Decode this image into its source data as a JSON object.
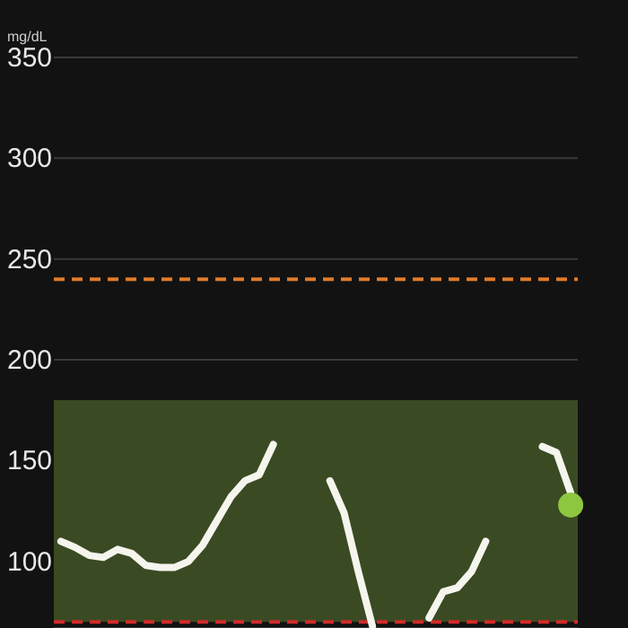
{
  "chart_data": {
    "type": "line",
    "ylabel": "mg/dL",
    "categories": [
      null,
      null,
      null,
      null,
      null,
      null,
      null,
      null,
      null,
      null,
      null,
      null,
      null,
      null,
      null,
      null,
      null,
      null,
      null,
      null,
      null,
      null,
      null,
      null,
      null,
      null,
      null,
      null,
      null,
      null,
      null,
      null,
      null,
      null,
      null,
      null,
      null
    ],
    "ylim": [
      67,
      350
    ],
    "yticks": [
      100,
      150,
      200,
      250,
      300,
      350
    ],
    "tick_labels": "y",
    "grid": "y",
    "legend": false,
    "line_style": "solid",
    "series": [
      {
        "type": "line",
        "color": "#f5f5ee",
        "values": [
          110,
          107,
          103,
          102,
          106,
          104,
          98,
          97,
          97,
          100,
          108,
          120,
          132,
          140,
          143,
          158,
          null,
          null,
          null,
          140,
          124,
          95,
          68,
          null,
          null,
          null,
          72,
          85,
          87,
          95,
          110,
          null,
          null,
          null,
          157,
          154,
          134
        ]
      },
      {
        "type": "scatter",
        "color": "#8dc63f",
        "values": [
          null,
          null,
          null,
          null,
          null,
          null,
          null,
          null,
          null,
          null,
          null,
          null,
          null,
          null,
          null,
          null,
          null,
          null,
          null,
          null,
          null,
          null,
          null,
          null,
          null,
          null,
          null,
          null,
          null,
          null,
          null,
          null,
          null,
          null,
          null,
          null,
          128
        ]
      }
    ],
    "bands": [
      {
        "axis": "y",
        "from": 70,
        "to": 180,
        "color": "#3a4a22"
      }
    ],
    "ref_lines": [
      {
        "axis": "y",
        "value": 240,
        "color": "#e07b2a",
        "line_style": "dashed"
      },
      {
        "axis": "y",
        "value": 70,
        "color": "#d42a2a",
        "line_style": "dashed"
      }
    ]
  }
}
